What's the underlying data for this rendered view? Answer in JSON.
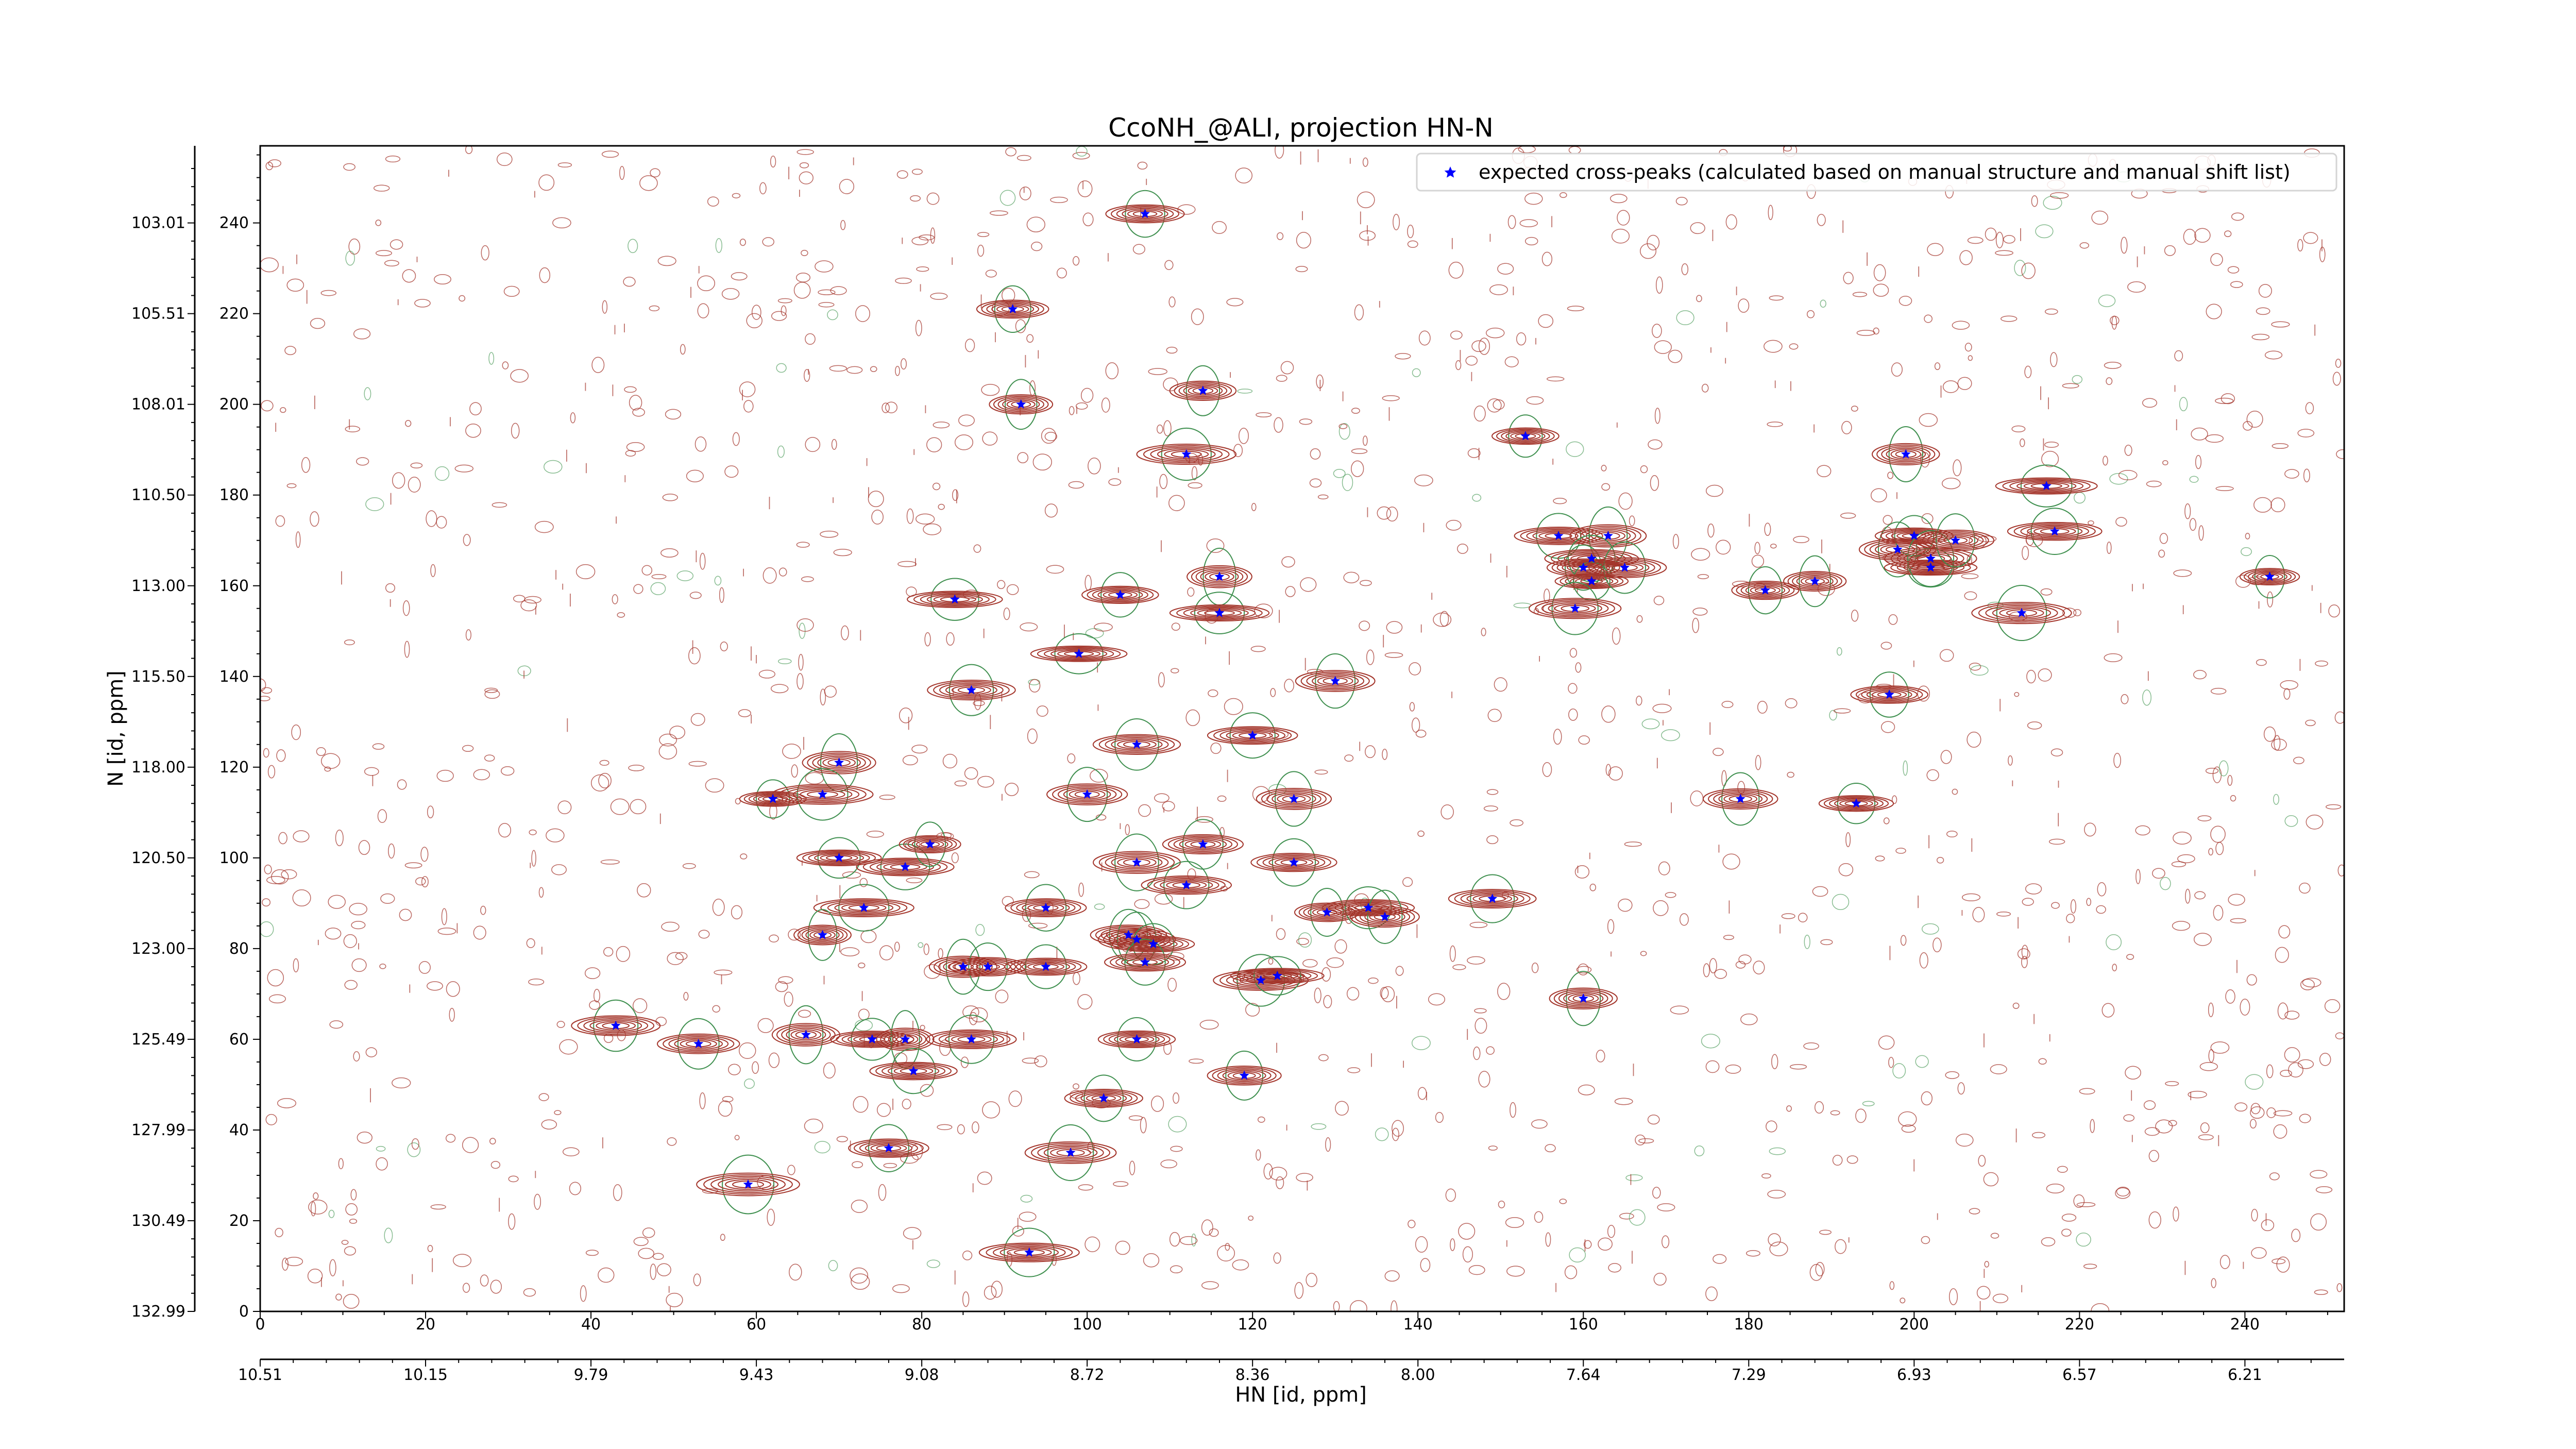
{
  "chart_data": {
    "type": "scatter",
    "title": "CcoNH_@ALI, projection HN-N",
    "xlabel": "HN [id, ppm]",
    "ylabel": "N [id, ppm]",
    "xlim": [
      0,
      252
    ],
    "ylim": [
      0,
      257
    ],
    "x_index_ticks": [
      "0",
      "20",
      "40",
      "60",
      "80",
      "100",
      "120",
      "140",
      "160",
      "180",
      "200",
      "220",
      "240"
    ],
    "x_ppm_ticks": [
      "10.51",
      "10.15",
      "9.79",
      "9.43",
      "9.08",
      "8.72",
      "8.36",
      "8.00",
      "7.64",
      "7.29",
      "6.93",
      "6.57",
      "6.21"
    ],
    "y_index_ticks": [
      "0",
      "20",
      "40",
      "60",
      "80",
      "100",
      "120",
      "140",
      "160",
      "180",
      "200",
      "220",
      "240"
    ],
    "y_ppm_ticks": [
      "132.99",
      "130.49",
      "127.99",
      "125.49",
      "123.00",
      "120.50",
      "118.00",
      "115.50",
      "113.00",
      "110.50",
      "108.01",
      "105.51",
      "103.01"
    ],
    "grid": false,
    "legend_position": "top-right",
    "series": [
      {
        "name": "expected cross-peaks (calculated based on manual structure and manual shift list)",
        "color": "#0000ff",
        "marker": "star",
        "points": [
          [
            107,
            242
          ],
          [
            91,
            221
          ],
          [
            92,
            200
          ],
          [
            114,
            203
          ],
          [
            112,
            189
          ],
          [
            153,
            193
          ],
          [
            199,
            189
          ],
          [
            216,
            182
          ],
          [
            217,
            172
          ],
          [
            84,
            157
          ],
          [
            104,
            158
          ],
          [
            116,
            162
          ],
          [
            116,
            154
          ],
          [
            99,
            145
          ],
          [
            86,
            137
          ],
          [
            130,
            139
          ],
          [
            157,
            171
          ],
          [
            163,
            171
          ],
          [
            160,
            164
          ],
          [
            161,
            166
          ],
          [
            161,
            161
          ],
          [
            159,
            155
          ],
          [
            165,
            164
          ],
          [
            182,
            159
          ],
          [
            188,
            161
          ],
          [
            198,
            168
          ],
          [
            200,
            171
          ],
          [
            202,
            164
          ],
          [
            202,
            166
          ],
          [
            205,
            170
          ],
          [
            213,
            154
          ],
          [
            243,
            162
          ],
          [
            197,
            136
          ],
          [
            106,
            125
          ],
          [
            120,
            127
          ],
          [
            70,
            121
          ],
          [
            62,
            113
          ],
          [
            68,
            114
          ],
          [
            100,
            114
          ],
          [
            125,
            113
          ],
          [
            179,
            113
          ],
          [
            193,
            112
          ],
          [
            70,
            100
          ],
          [
            78,
            98
          ],
          [
            81,
            103
          ],
          [
            114,
            103
          ],
          [
            106,
            99
          ],
          [
            112,
            94
          ],
          [
            125,
            99
          ],
          [
            73,
            89
          ],
          [
            95,
            89
          ],
          [
            68,
            83
          ],
          [
            105,
            83
          ],
          [
            106,
            82
          ],
          [
            108,
            81
          ],
          [
            129,
            88
          ],
          [
            134,
            89
          ],
          [
            136,
            87
          ],
          [
            149,
            91
          ],
          [
            85,
            76
          ],
          [
            88,
            76
          ],
          [
            95,
            76
          ],
          [
            107,
            77
          ],
          [
            121,
            73
          ],
          [
            123,
            74
          ],
          [
            160,
            69
          ],
          [
            43,
            63
          ],
          [
            53,
            59
          ],
          [
            66,
            61
          ],
          [
            74,
            60
          ],
          [
            78,
            60
          ],
          [
            86,
            60
          ],
          [
            106,
            60
          ],
          [
            79,
            53
          ],
          [
            119,
            52
          ],
          [
            102,
            47
          ],
          [
            76,
            36
          ],
          [
            98,
            35
          ],
          [
            59,
            28
          ],
          [
            93,
            13
          ]
        ]
      }
    ]
  }
}
